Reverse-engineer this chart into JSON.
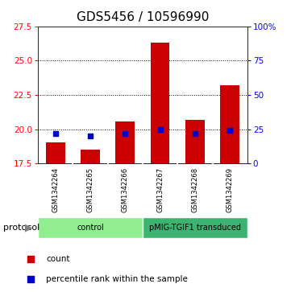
{
  "title": "GDS5456 / 10596990",
  "samples": [
    "GSM1342264",
    "GSM1342265",
    "GSM1342266",
    "GSM1342267",
    "GSM1342268",
    "GSM1342269"
  ],
  "counts": [
    19.05,
    18.5,
    20.55,
    26.3,
    20.7,
    23.2
  ],
  "percentiles": [
    22,
    20,
    22,
    25,
    22,
    24
  ],
  "ymin": 17.5,
  "ymax": 27.5,
  "yticks": [
    17.5,
    20.0,
    22.5,
    25.0,
    27.5
  ],
  "y2min": 0,
  "y2max": 100,
  "y2ticks": [
    0,
    25,
    50,
    75,
    100
  ],
  "y2ticklabels": [
    "0",
    "25",
    "50",
    "75",
    "100%"
  ],
  "groups": [
    {
      "label": "control",
      "color": "#90EE90",
      "start": 0,
      "end": 3
    },
    {
      "label": "pMIG-TGIF1 transduced",
      "color": "#3CB371",
      "start": 3,
      "end": 6
    }
  ],
  "bar_color": "#CC0000",
  "percentile_color": "#0000CC",
  "bar_width": 0.55,
  "title_fontsize": 11,
  "background_color": "#ffffff",
  "plot_bg": "#ffffff",
  "bar_base": 17.5,
  "percentile_size": 25,
  "label_bg": "#C8C8C8",
  "grid_yticks": [
    20.0,
    22.5,
    25.0
  ],
  "legend_red_label": "count",
  "legend_blue_label": "percentile rank within the sample",
  "protocol_label": "protocol"
}
